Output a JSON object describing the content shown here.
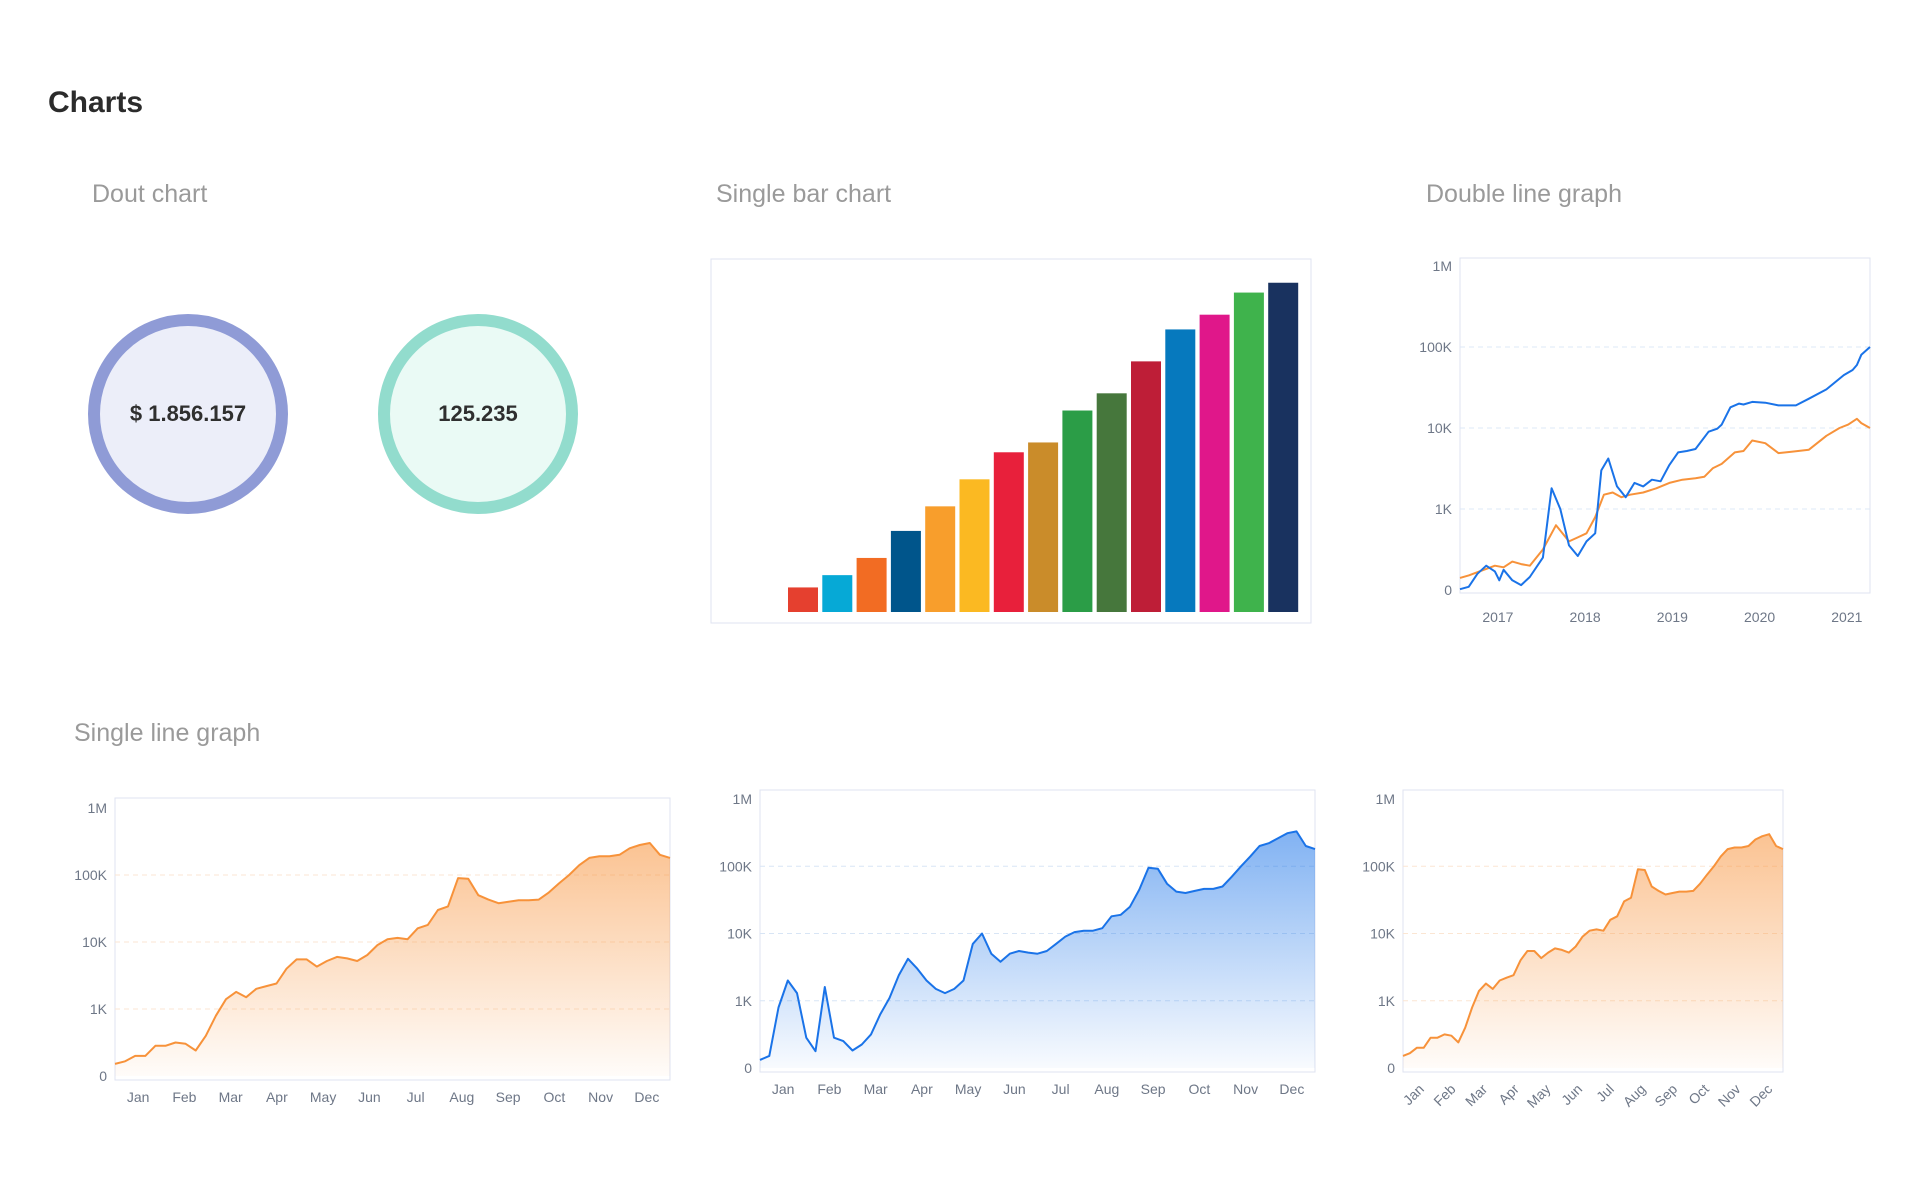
{
  "page": {
    "title": "Charts"
  },
  "sections": {
    "donut": "Dout chart",
    "bar": "Single bar chart",
    "double_line": "Double line graph",
    "single_line": "Single line graph"
  },
  "donuts": [
    {
      "value": "$ 1.856.157",
      "ring_color": "#8f9bd6",
      "fill_color": "#eceef9"
    },
    {
      "value": "125.235",
      "ring_color": "#92dccd",
      "fill_color": "#eafaf5"
    }
  ],
  "chart_data": [
    {
      "type": "bar",
      "values": [
        1,
        1.5,
        2.2,
        3.3,
        4.3,
        5.4,
        6.5,
        6.9,
        8.2,
        8.9,
        10.2,
        11.5,
        12.1,
        13,
        13.4
      ],
      "colors": [
        "#e5402f",
        "#06a9d6",
        "#f26c23",
        "#00558b",
        "#f89e2c",
        "#fbb922",
        "#e8203b",
        "#ca8c2a",
        "#2b9d47",
        "#46773c",
        "#be1e37",
        "#0679be",
        "#e0178a",
        "#3fb34c",
        "#19325f"
      ],
      "ylim": [
        0,
        14
      ]
    },
    {
      "type": "line",
      "yscale": "log",
      "yticks": [
        "0",
        "1K",
        "10K",
        "100K",
        "1M"
      ],
      "x_ticks": [
        "2017",
        "2018",
        "2019",
        "2020",
        "2021"
      ],
      "x_range": [
        2016.6,
        2021.3
      ],
      "series": [
        {
          "color": "#1a73e8",
          "x": [
            2016.6,
            2016.7,
            2016.8,
            2016.9,
            2017.0,
            2017.05,
            2017.1,
            2017.2,
            2017.3,
            2017.4,
            2017.55,
            2017.65,
            2017.75,
            2017.85,
            2017.95,
            2018.05,
            2018.15,
            2018.22,
            2018.3,
            2018.4,
            2018.5,
            2018.6,
            2018.7,
            2018.8,
            2018.9,
            2019.0,
            2019.1,
            2019.2,
            2019.3,
            2019.45,
            2019.55,
            2019.6,
            2019.7,
            2019.8,
            2019.85,
            2019.95,
            2020.1,
            2020.25,
            2020.45,
            2020.6,
            2020.8,
            2021.0,
            2021.1,
            2021.15,
            2021.2,
            2021.3
          ],
          "y": [
            10,
            40,
            200,
            300,
            230,
            120,
            250,
            120,
            60,
            160,
            400,
            1800,
            1000,
            550,
            420,
            600,
            700,
            3000,
            4200,
            1900,
            1400,
            2100,
            1900,
            2300,
            2200,
            3500,
            5000,
            5200,
            5500,
            9000,
            9800,
            11000,
            18000,
            20000,
            19500,
            21000,
            20500,
            19000,
            19000,
            23000,
            30000,
            45000,
            52000,
            60000,
            80000,
            100000
          ]
        },
        {
          "color": "#f7923a",
          "x": [
            2016.6,
            2016.7,
            2016.8,
            2016.9,
            2017.0,
            2017.1,
            2017.2,
            2017.3,
            2017.4,
            2017.55,
            2017.7,
            2017.85,
            2017.95,
            2018.05,
            2018.15,
            2018.25,
            2018.35,
            2018.45,
            2018.55,
            2018.7,
            2018.85,
            2019.0,
            2019.15,
            2019.3,
            2019.4,
            2019.5,
            2019.6,
            2019.75,
            2019.85,
            2019.95,
            2020.1,
            2020.25,
            2020.4,
            2020.6,
            2020.8,
            2020.95,
            2021.05,
            2021.15,
            2021.2,
            2021.3
          ],
          "y": [
            150,
            180,
            220,
            260,
            300,
            280,
            350,
            320,
            300,
            500,
            800,
            600,
            650,
            700,
            900,
            1500,
            1600,
            1400,
            1500,
            1600,
            1800,
            2100,
            2300,
            2400,
            2500,
            3200,
            3600,
            5000,
            5200,
            7000,
            6500,
            4900,
            5100,
            5400,
            8000,
            10000,
            11000,
            13000,
            11500,
            10000
          ]
        }
      ]
    },
    {
      "type": "area",
      "yscale": "log",
      "yticks": [
        "0",
        "1K",
        "10K",
        "100K",
        "1M"
      ],
      "x_ticks": [
        "Jan",
        "Feb",
        "Mar",
        "Apr",
        "May",
        "Jun",
        "Jul",
        "Aug",
        "Sep",
        "Oct",
        "Nov",
        "Dec"
      ],
      "series": [
        {
          "color": "#f7923a",
          "y": [
            180,
            220,
            300,
            300,
            450,
            450,
            500,
            480,
            380,
            600,
            900,
            1400,
            1800,
            1500,
            2000,
            2200,
            2400,
            4000,
            5500,
            5500,
            4300,
            5200,
            6000,
            5700,
            5200,
            6400,
            9000,
            11000,
            11500,
            11000,
            16000,
            18000,
            30000,
            34000,
            90000,
            88000,
            50000,
            43000,
            38000,
            40000,
            42000,
            42000,
            43000,
            55000,
            75000,
            100000,
            140000,
            180000,
            190000,
            190000,
            200000,
            250000,
            280000,
            300000,
            200000,
            180000
          ]
        }
      ]
    },
    {
      "type": "area",
      "yscale": "log",
      "yticks": [
        "0",
        "1K",
        "10K",
        "100K",
        "1M"
      ],
      "x_ticks": [
        "Jan",
        "Feb",
        "Mar",
        "Apr",
        "May",
        "Jun",
        "Jul",
        "Aug",
        "Sep",
        "Oct",
        "Nov",
        "Dec"
      ],
      "series": [
        {
          "color": "#1a73e8",
          "y": [
            120,
            180,
            900,
            2000,
            1300,
            450,
            250,
            1600,
            450,
            400,
            260,
            350,
            500,
            800,
            1100,
            2400,
            4200,
            3000,
            2000,
            1500,
            1300,
            1500,
            2000,
            7000,
            10000,
            5000,
            3800,
            5000,
            5500,
            5200,
            5000,
            5500,
            7000,
            9000,
            10500,
            11000,
            11000,
            12000,
            18000,
            19000,
            25000,
            45000,
            95000,
            92000,
            55000,
            42000,
            40000,
            43000,
            46000,
            46000,
            50000,
            70000,
            100000,
            140000,
            200000,
            220000,
            260000,
            310000,
            330000,
            200000,
            180000
          ]
        }
      ]
    },
    {
      "type": "area",
      "yscale": "log",
      "yticks": [
        "0",
        "1K",
        "10K",
        "100K",
        "1M"
      ],
      "x_ticks": [
        "Jan",
        "Feb",
        "Mar",
        "Apr",
        "May",
        "Jun",
        "Jul",
        "Aug",
        "Sep",
        "Oct",
        "Nov",
        "Dec"
      ],
      "series": [
        {
          "color": "#f7923a",
          "y": [
            180,
            220,
            300,
            300,
            450,
            450,
            500,
            480,
            380,
            600,
            900,
            1400,
            1800,
            1500,
            2000,
            2200,
            2400,
            4000,
            5500,
            5500,
            4300,
            5200,
            6000,
            5700,
            5200,
            6400,
            9000,
            11000,
            11500,
            11000,
            16000,
            18000,
            30000,
            34000,
            90000,
            88000,
            50000,
            43000,
            38000,
            40000,
            42000,
            42000,
            43000,
            55000,
            75000,
            100000,
            140000,
            180000,
            190000,
            190000,
            200000,
            250000,
            280000,
            300000,
            200000,
            180000
          ]
        }
      ]
    }
  ]
}
